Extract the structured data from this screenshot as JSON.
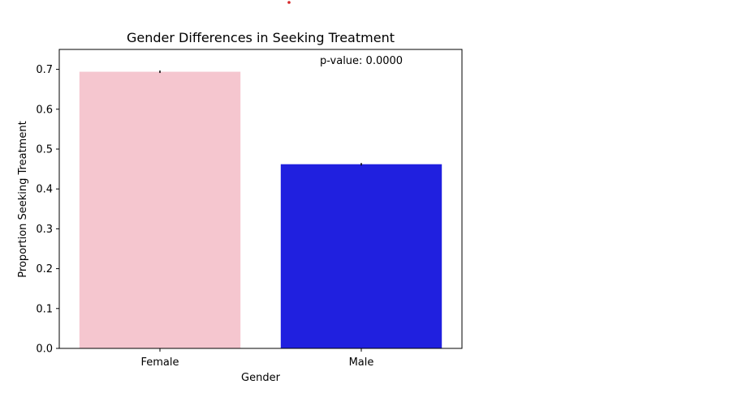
{
  "chart_data": {
    "type": "bar",
    "title": "Gender Differences in Seeking Treatment",
    "xlabel": "Gender",
    "ylabel": "Proportion Seeking Treatment",
    "categories": [
      "Female",
      "Male"
    ],
    "values": [
      0.694,
      0.462
    ],
    "colors": [
      "#f5c6cf",
      "#2020df"
    ],
    "ylim": [
      0,
      0.75
    ],
    "yticks": [
      0.0,
      0.1,
      0.2,
      0.3,
      0.4,
      0.5,
      0.6,
      0.7
    ],
    "ytick_labels": [
      "0.0",
      "0.1",
      "0.2",
      "0.3",
      "0.4",
      "0.5",
      "0.6",
      "0.7"
    ],
    "annotation": "p-value: 0.0000",
    "grid": false,
    "legend": "none",
    "marker_color": "#d62728"
  }
}
